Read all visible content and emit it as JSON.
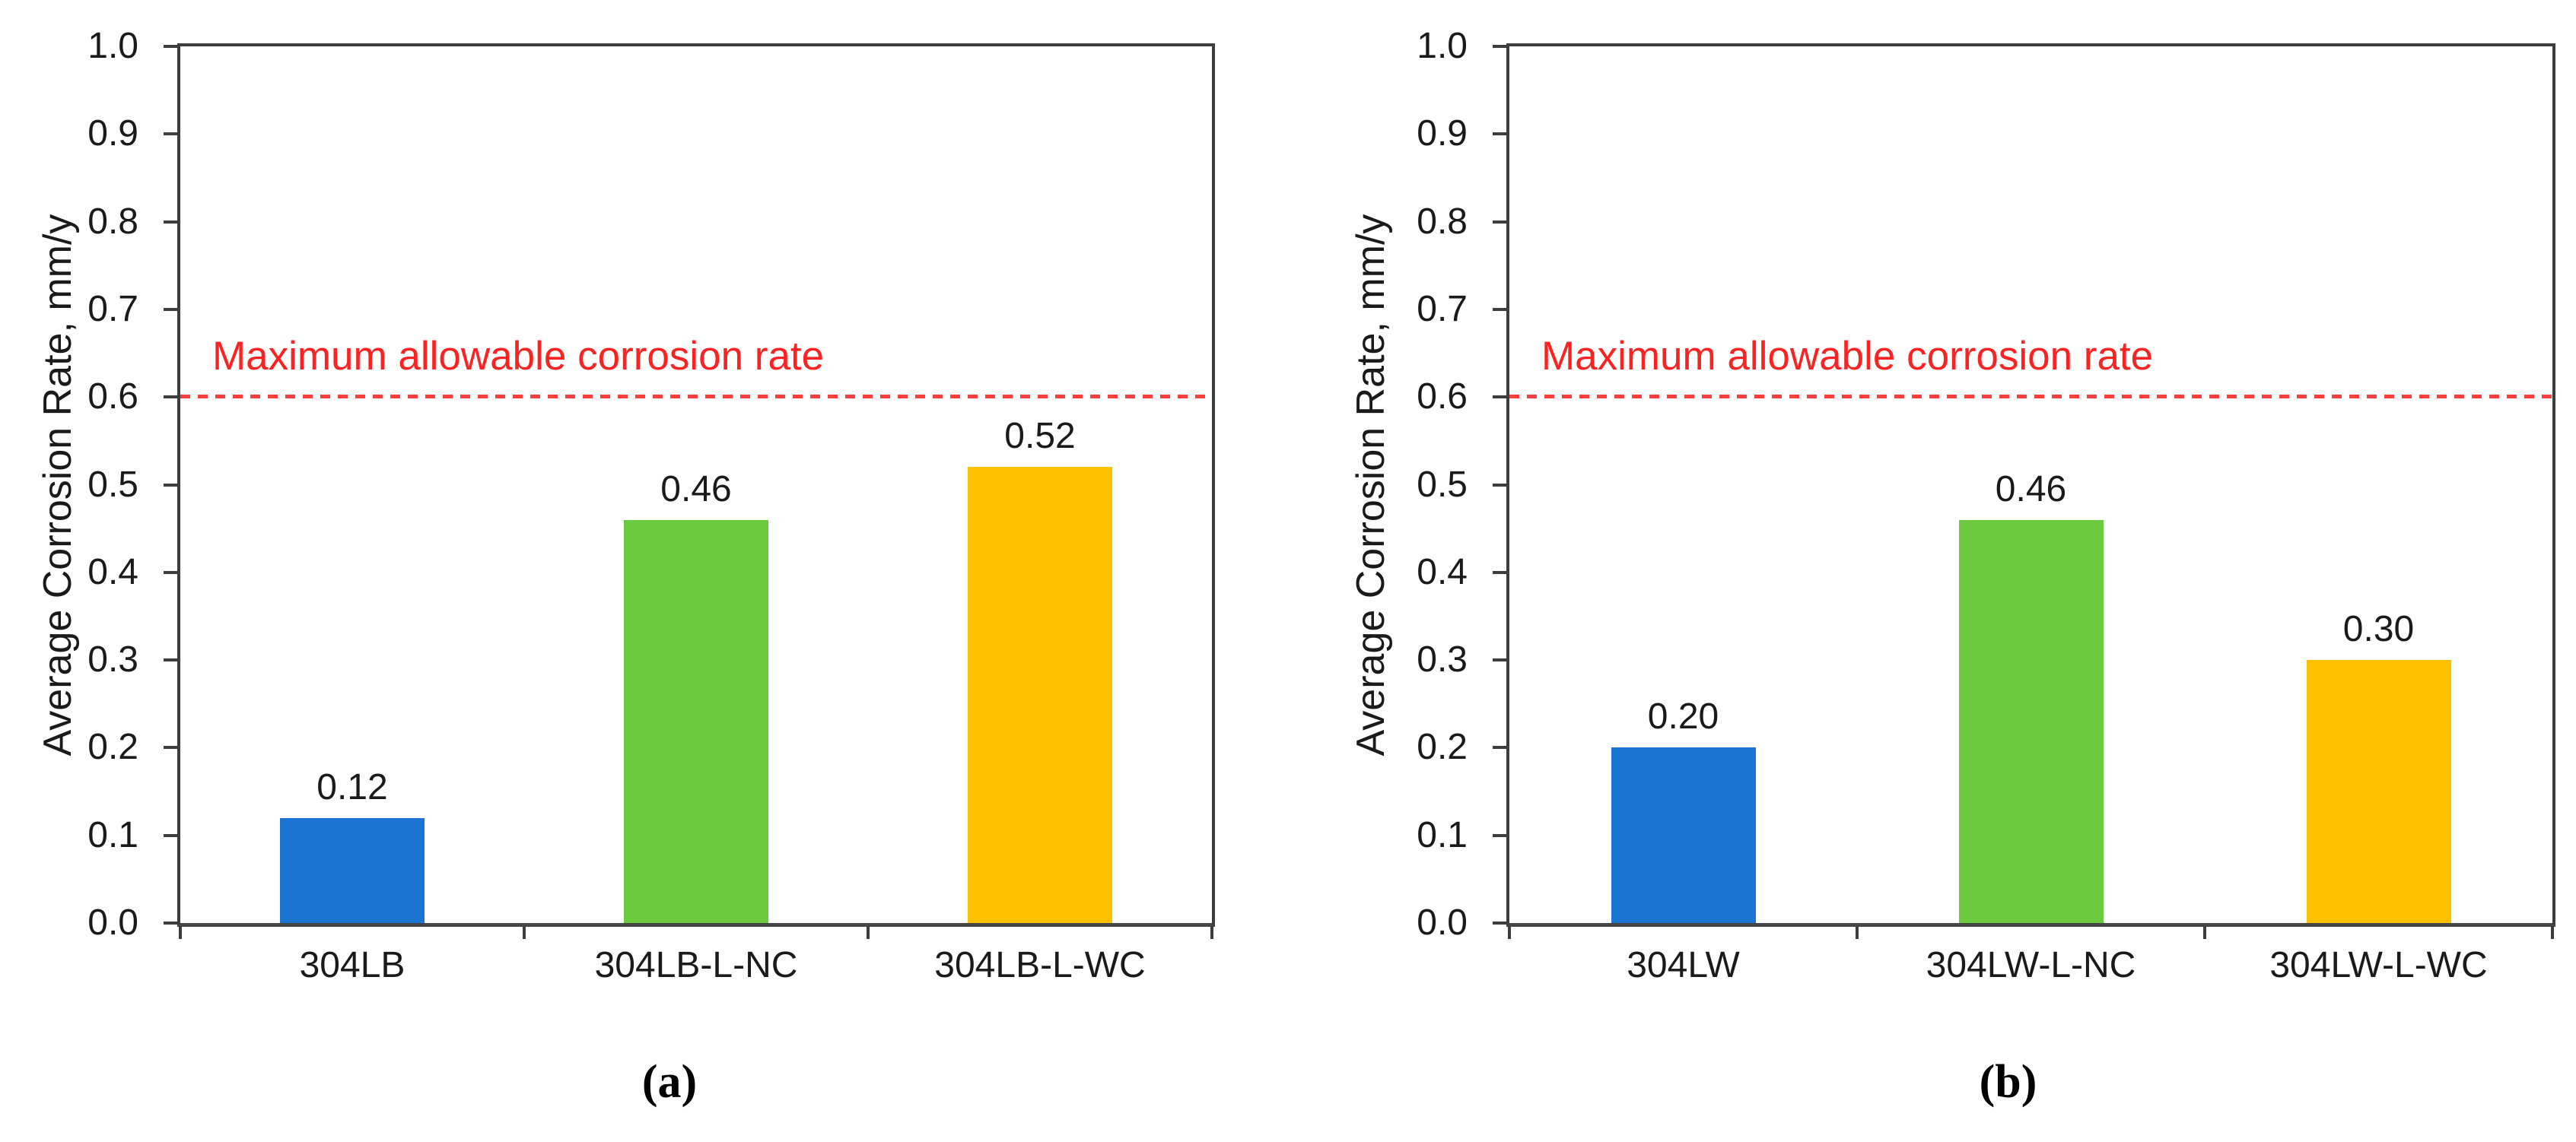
{
  "page": {
    "background": "#ffffff"
  },
  "chart_data": [
    {
      "id": "a",
      "type": "bar",
      "caption": "(a)",
      "ylabel": "Average Corrosion Rate, mm/y",
      "ylim": [
        0.0,
        1.0
      ],
      "ytick_step": 0.1,
      "ytick_labels": [
        "1.0",
        "0.9",
        "0.8",
        "0.7",
        "0.6",
        "0.5",
        "0.4",
        "0.3",
        "0.2",
        "0.1",
        "0.0"
      ],
      "categories": [
        "304LB",
        "304LB-L-NC",
        "304LB-L-WC"
      ],
      "values": [
        0.12,
        0.46,
        0.52
      ],
      "value_labels": [
        "0.12",
        "0.46",
        "0.52"
      ],
      "bar_colors": [
        "#1b74d2",
        "#6cca3e",
        "#ffc000"
      ],
      "reference_line": {
        "value": 0.6,
        "label": "Maximum allowable corrosion rate",
        "color": "#fa3d3d",
        "style": "dashed"
      },
      "grid": false,
      "legend": null
    },
    {
      "id": "b",
      "type": "bar",
      "caption": "(b)",
      "ylabel": "Average Corrosion Rate, mm/y",
      "ylim": [
        0.0,
        1.0
      ],
      "ytick_step": 0.1,
      "ytick_labels": [
        "1.0",
        "0.9",
        "0.8",
        "0.7",
        "0.6",
        "0.5",
        "0.4",
        "0.3",
        "0.2",
        "0.1",
        "0.0"
      ],
      "categories": [
        "304LW",
        "304LW-L-NC",
        "304LW-L-WC"
      ],
      "values": [
        0.2,
        0.46,
        0.3
      ],
      "value_labels": [
        "0.20",
        "0.46",
        "0.30"
      ],
      "bar_colors": [
        "#1b74d2",
        "#6cca3e",
        "#ffc000"
      ],
      "reference_line": {
        "value": 0.6,
        "label": "Maximum allowable corrosion rate",
        "color": "#fa3d3d",
        "style": "dashed"
      },
      "grid": false,
      "legend": null
    }
  ]
}
